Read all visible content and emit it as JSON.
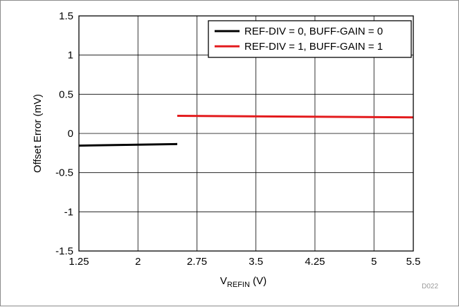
{
  "chart_data": {
    "type": "line",
    "title": "",
    "xlabel": {
      "main": "V",
      "sub": "REFIN",
      "unit": " (V)"
    },
    "ylabel": "Offset Error (mV)",
    "xlim": [
      1.25,
      5.5
    ],
    "ylim": [
      -1.5,
      1.5
    ],
    "x_ticks": [
      1.25,
      2,
      2.75,
      3.5,
      4.25,
      5,
      5.5
    ],
    "x_tick_labels": [
      "1.25",
      "2",
      "2.75",
      "3.5",
      "4.25",
      "5",
      "5.5"
    ],
    "y_ticks": [
      -1.5,
      -1,
      -0.5,
      0,
      0.5,
      1,
      1.5
    ],
    "y_tick_labels": [
      "-1.5",
      "-1",
      "-0.5",
      "0",
      "0.5",
      "1",
      "1.5"
    ],
    "grid": true,
    "legend_position": "top-right",
    "series": [
      {
        "name": "REF-DIV = 0, BUFF-GAIN = 0",
        "color": "#000000",
        "x": [
          1.25,
          2.5
        ],
        "y": [
          -0.155,
          -0.135
        ]
      },
      {
        "name": "REF-DIV = 1, BUFF-GAIN = 1",
        "color": "#e31a1c",
        "x": [
          2.5,
          5.5
        ],
        "y": [
          0.225,
          0.205
        ]
      }
    ],
    "figure_code": "D022"
  }
}
